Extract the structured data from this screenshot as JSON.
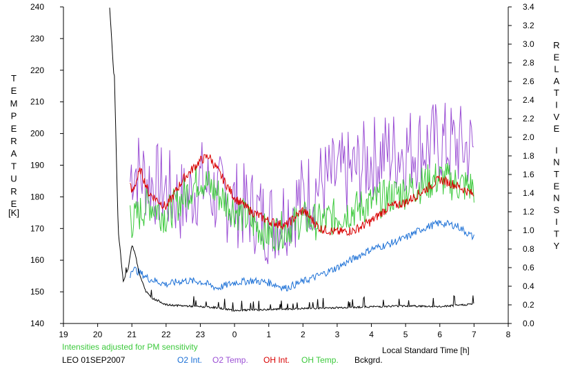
{
  "chart_data": {
    "type": "line",
    "left_axis_label": "TEMPERATURE",
    "left_axis_unit": "[K]",
    "right_axis_label": "RELATIVE INTENSITY",
    "xlabel": "Local Standard Time [h]",
    "note": "Intensities adjusted for PM sensitivity",
    "station_date": "LEO 01SEP2007",
    "x_ticks": [
      "19",
      "20",
      "21",
      "22",
      "23",
      "0",
      "1",
      "2",
      "3",
      "4",
      "5",
      "6",
      "7",
      "8"
    ],
    "y_left_ticks": [
      "140",
      "150",
      "160",
      "170",
      "180",
      "190",
      "200",
      "210",
      "220",
      "230",
      "240"
    ],
    "y_right_ticks": [
      "0.0",
      "0.2",
      "0.4",
      "0.6",
      "0.8",
      "1.0",
      "1.2",
      "1.4",
      "1.6",
      "1.8",
      "2.0",
      "2.2",
      "2.4",
      "2.6",
      "2.8",
      "3.0",
      "3.2",
      "3.4"
    ],
    "xlim": [
      19,
      32
    ],
    "ylim_left": [
      140,
      240
    ],
    "ylim_right": [
      0.0,
      3.4
    ],
    "grid": false,
    "legend_placement": "bottom",
    "series": [
      {
        "name": "O2 Int.",
        "axis": "right",
        "color": "#1a6fd6",
        "x": [
          20.95,
          21.0,
          21.5,
          22.0,
          22.5,
          23.0,
          23.5,
          24.0,
          24.5,
          25.0,
          25.5,
          26.0,
          26.5,
          27.0,
          27.5,
          28.0,
          28.5,
          29.0,
          29.5,
          30.0,
          30.5,
          31.0
        ],
        "y": [
          0.52,
          0.6,
          0.48,
          0.42,
          0.46,
          0.45,
          0.38,
          0.44,
          0.46,
          0.44,
          0.38,
          0.45,
          0.52,
          0.6,
          0.7,
          0.8,
          0.85,
          0.92,
          1.02,
          1.08,
          1.05,
          0.92
        ]
      },
      {
        "name": "O2 Temp.",
        "axis": "left",
        "color": "#9b4fd4",
        "x": [
          20.95,
          21.0,
          21.5,
          22.0,
          22.5,
          23.0,
          23.5,
          24.0,
          24.5,
          25.0,
          25.5,
          26.0,
          26.5,
          27.0,
          27.5,
          28.0,
          28.5,
          29.0,
          29.5,
          30.0,
          30.5,
          31.0
        ],
        "y": [
          185,
          190,
          185,
          182,
          178,
          185,
          180,
          178,
          176,
          172,
          175,
          180,
          184,
          186,
          188,
          192,
          194,
          195,
          196,
          197,
          196,
          195
        ]
      },
      {
        "name": "OH Int.",
        "axis": "right",
        "color": "#d90000",
        "x": [
          20.95,
          21.0,
          21.25,
          21.5,
          22.0,
          22.5,
          23.0,
          23.25,
          23.5,
          24.0,
          24.5,
          25.0,
          25.5,
          26.0,
          26.5,
          27.0,
          27.5,
          28.0,
          28.5,
          29.0,
          29.5,
          30.0,
          30.5,
          31.0
        ],
        "y": [
          1.48,
          1.4,
          1.65,
          1.4,
          1.25,
          1.55,
          1.75,
          1.8,
          1.65,
          1.35,
          1.2,
          1.1,
          1.05,
          1.22,
          1.02,
          0.98,
          1.0,
          1.1,
          1.25,
          1.3,
          1.42,
          1.55,
          1.48,
          1.38
        ]
      },
      {
        "name": "OH Temp.",
        "axis": "left",
        "color": "#3cc93c",
        "x": [
          20.95,
          21.0,
          21.5,
          22.0,
          22.5,
          23.0,
          23.5,
          24.0,
          24.5,
          25.0,
          25.5,
          26.0,
          26.5,
          27.0,
          27.5,
          28.0,
          28.5,
          29.0,
          29.5,
          30.0,
          30.5,
          31.0
        ],
        "y": [
          176,
          172,
          178,
          174,
          180,
          186,
          181,
          176,
          172,
          168,
          170,
          173,
          172,
          174,
          176,
          178,
          180,
          182,
          184,
          186,
          184,
          183
        ]
      },
      {
        "name": "Bckgrd.",
        "axis": "right",
        "color": "#000000",
        "x": [
          20.35,
          20.5,
          20.6,
          20.75,
          20.9,
          21.0,
          21.1,
          21.2,
          21.4,
          21.6,
          21.8,
          22.0,
          22.5,
          23.0,
          23.5,
          24.0,
          25.0,
          26.0,
          27.0,
          28.0,
          29.0,
          30.0,
          31.0
        ],
        "y": [
          3.4,
          2.5,
          1.0,
          0.45,
          0.6,
          0.85,
          0.75,
          0.55,
          0.35,
          0.27,
          0.24,
          0.2,
          0.19,
          0.18,
          0.17,
          0.14,
          0.15,
          0.16,
          0.17,
          0.18,
          0.19,
          0.18,
          0.21
        ]
      }
    ]
  }
}
